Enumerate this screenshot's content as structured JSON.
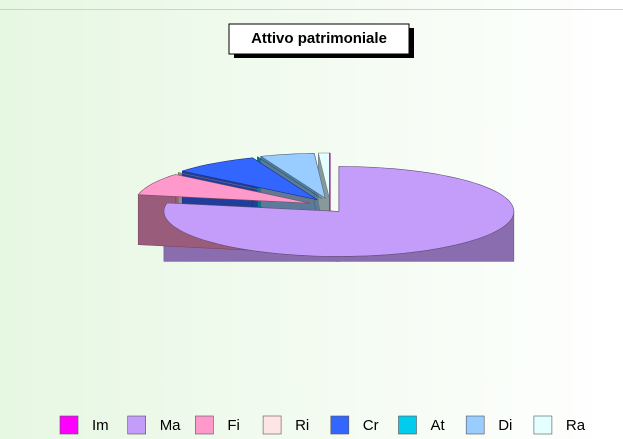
{
  "chart_data": {
    "type": "pie3d",
    "title": "Attivo patrimoniale",
    "categories": [
      "Im",
      "Ma",
      "Fi",
      "Ri",
      "Cr",
      "At",
      "Di",
      "Ra"
    ],
    "values": [
      0,
      78,
      8,
      0,
      8,
      0,
      5,
      1
    ],
    "colors": [
      "#ff00ff",
      "#c49cfa",
      "#ff99cc",
      "#ffe4e4",
      "#3366ff",
      "#00ccee",
      "#99ccff",
      "#e4ffff"
    ],
    "legend": "bottom"
  }
}
